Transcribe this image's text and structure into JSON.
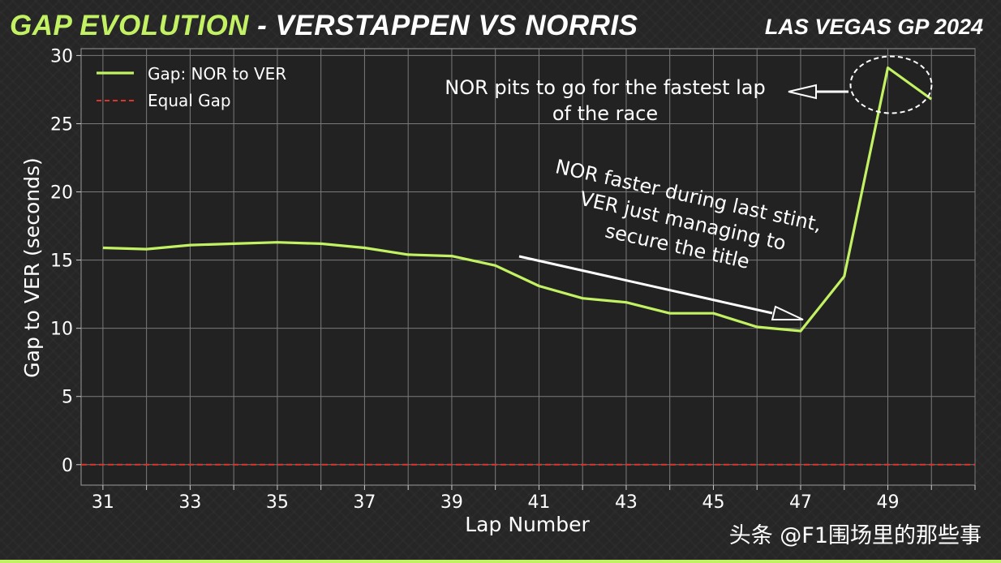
{
  "header": {
    "title_accent": "GAP EVOLUTION",
    "title_rest": " - VERSTAPPEN VS NORRIS",
    "event": "LAS VEGAS GP 2024"
  },
  "watermark": "头条 @F1围场里的那些事",
  "colors": {
    "series": "#c3f164",
    "equal_line": "#e0342a",
    "grid": "#7a7a7a",
    "text": "#ffffff"
  },
  "chart_data": {
    "type": "line",
    "title": "GAP EVOLUTION - VERSTAPPEN VS NORRIS",
    "xlabel": "Lap Number",
    "ylabel": "Gap to VER (seconds)",
    "xlim": [
      30.5,
      51
    ],
    "ylim": [
      -1.5,
      30.5
    ],
    "xticks": [
      31,
      33,
      35,
      37,
      39,
      41,
      43,
      45,
      47,
      49
    ],
    "yticks": [
      0,
      5,
      10,
      15,
      20,
      25,
      30
    ],
    "grid": true,
    "legend_position": "top-left",
    "series": [
      {
        "name": "Gap: NOR to VER",
        "style": "solid",
        "x": [
          31,
          32,
          33,
          34,
          35,
          36,
          37,
          38,
          39,
          40,
          41,
          42,
          43,
          44,
          45,
          46,
          47,
          48,
          49,
          50
        ],
        "y": [
          15.9,
          15.8,
          16.1,
          16.2,
          16.3,
          16.2,
          15.9,
          15.4,
          15.3,
          14.6,
          13.1,
          12.2,
          11.9,
          11.1,
          11.1,
          10.1,
          9.8,
          13.8,
          29.1,
          26.8
        ]
      },
      {
        "name": "Equal Gap",
        "style": "dashed",
        "x": [
          30.5,
          51
        ],
        "y": [
          0,
          0
        ]
      }
    ],
    "annotations": [
      {
        "lines": [
          "NOR pits to go for the fastest lap",
          "of the race"
        ]
      },
      {
        "lines": [
          "NOR faster during last stint,",
          "VER just managing to",
          "secure the title"
        ]
      }
    ]
  }
}
